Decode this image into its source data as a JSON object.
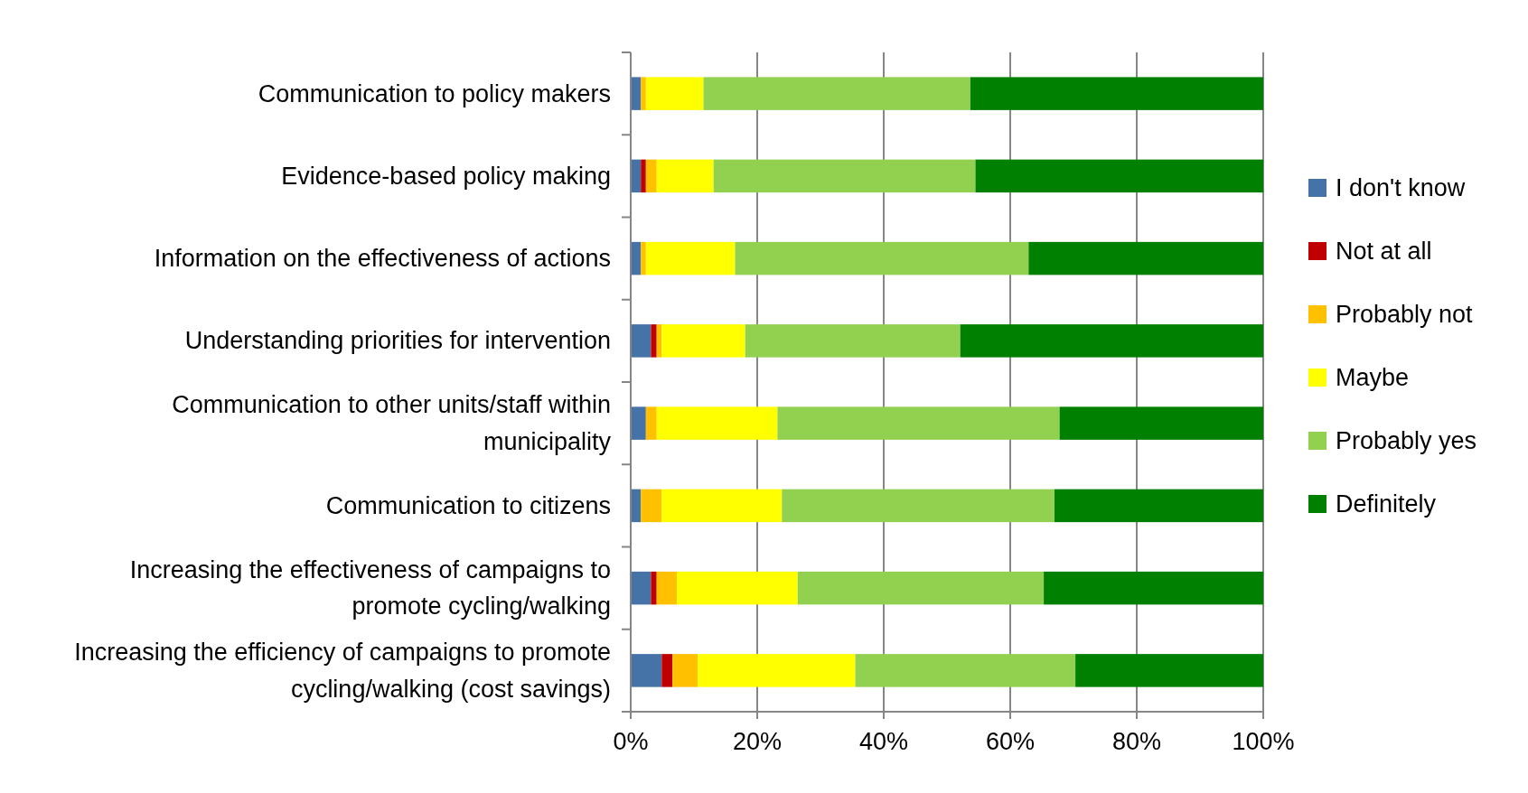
{
  "chart_data": {
    "type": "bar",
    "orientation": "horizontal",
    "stacked": true,
    "categories": [
      "Communication to policy makers",
      "Evidence-based policy making",
      "Information on the effectiveness of actions",
      "Understanding priorities for intervention",
      "Communication to other units/staff within municipality",
      "Communication to citizens",
      "Increasing the effectiveness of campaigns to promote cycling/walking",
      "Increasing the efficiency of campaigns to promote cycling/walking (cost savings)"
    ],
    "series": [
      {
        "name": "I don't know",
        "color": "#4572a7",
        "values": [
          1.6,
          1.6,
          1.6,
          3.2,
          2.4,
          1.6,
          3.2,
          4.9
        ]
      },
      {
        "name": "Not at all",
        "color": "#c00000",
        "values": [
          0,
          0.8,
          0,
          0.9,
          0,
          0,
          0.9,
          1.7
        ]
      },
      {
        "name": "Probably not",
        "color": "#ffc000",
        "values": [
          0.8,
          1.7,
          0.8,
          0.8,
          1.7,
          3.3,
          3.2,
          4.0
        ]
      },
      {
        "name": "Maybe",
        "color": "#ffff00",
        "values": [
          9.1,
          9.0,
          14.1,
          13.2,
          19.1,
          19.0,
          19.1,
          24.9
        ]
      },
      {
        "name": "Probably yes",
        "color": "#92d050",
        "values": [
          42.2,
          41.4,
          46.4,
          34.0,
          44.6,
          43.1,
          38.9,
          34.8
        ]
      },
      {
        "name": "Definitely",
        "color": "#008000",
        "values": [
          46.3,
          45.5,
          37.1,
          47.9,
          32.2,
          33.0,
          34.7,
          29.7
        ]
      }
    ],
    "xlim": [
      0,
      100
    ],
    "xticks": [
      {
        "value": 0,
        "label": "0%"
      },
      {
        "value": 20,
        "label": "20%"
      },
      {
        "value": 40,
        "label": "40%"
      },
      {
        "value": 60,
        "label": "60%"
      },
      {
        "value": 80,
        "label": "80%"
      },
      {
        "value": 100,
        "label": "100%"
      }
    ],
    "grid": "x",
    "legend": "right"
  }
}
